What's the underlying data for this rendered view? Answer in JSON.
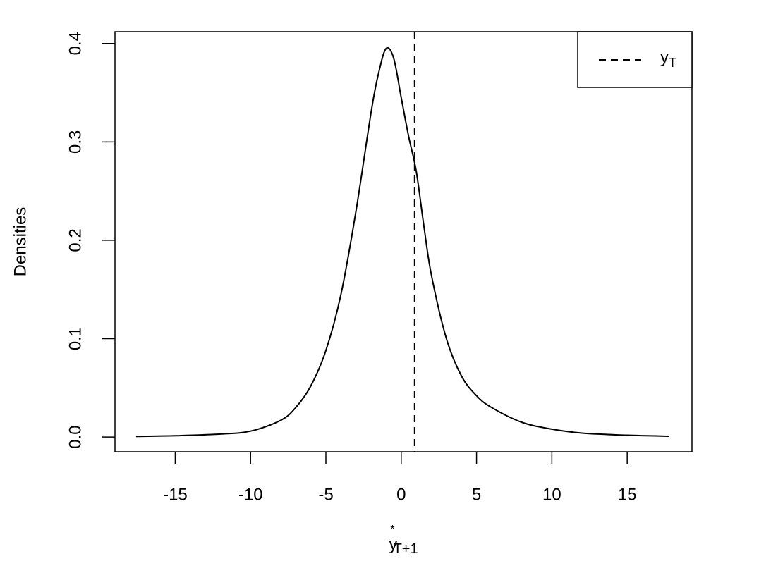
{
  "chart_data": {
    "type": "line",
    "xlabel": {
      "text": "y",
      "sup": "*",
      "sub": "T+1"
    },
    "ylabel": "Densities",
    "series": [
      {
        "color": "#000000",
        "x": [
          -17.6,
          -15,
          -12,
          -10,
          -8,
          -7,
          -6,
          -5,
          -4,
          -3,
          -2,
          -1.5,
          -1,
          -0.5,
          0,
          0.5,
          1,
          1.5,
          2,
          3,
          4,
          5,
          6,
          8,
          10,
          12,
          15,
          17.8
        ],
        "values": [
          0.0006,
          0.0013,
          0.003,
          0.006,
          0.017,
          0.03,
          0.052,
          0.088,
          0.145,
          0.23,
          0.33,
          0.37,
          0.395,
          0.385,
          0.345,
          0.305,
          0.27,
          0.215,
          0.165,
          0.1,
          0.062,
          0.042,
          0.03,
          0.015,
          0.008,
          0.004,
          0.0018,
          0.0008
        ]
      }
    ],
    "vlines": [
      {
        "x": 0.89,
        "color": "#000000",
        "dash": true,
        "label": {
          "text": "y",
          "sub": "T"
        }
      }
    ],
    "xlim": [
      -19.0,
      19.3
    ],
    "ylim": [
      -0.015,
      0.412
    ],
    "xticks": [
      -15,
      -10,
      -5,
      0,
      5,
      10,
      15
    ],
    "yticks": [
      {
        "value": 0,
        "label": "0.0"
      },
      0.1,
      0.2,
      0.3,
      0.4
    ],
    "legend": "top-right"
  }
}
